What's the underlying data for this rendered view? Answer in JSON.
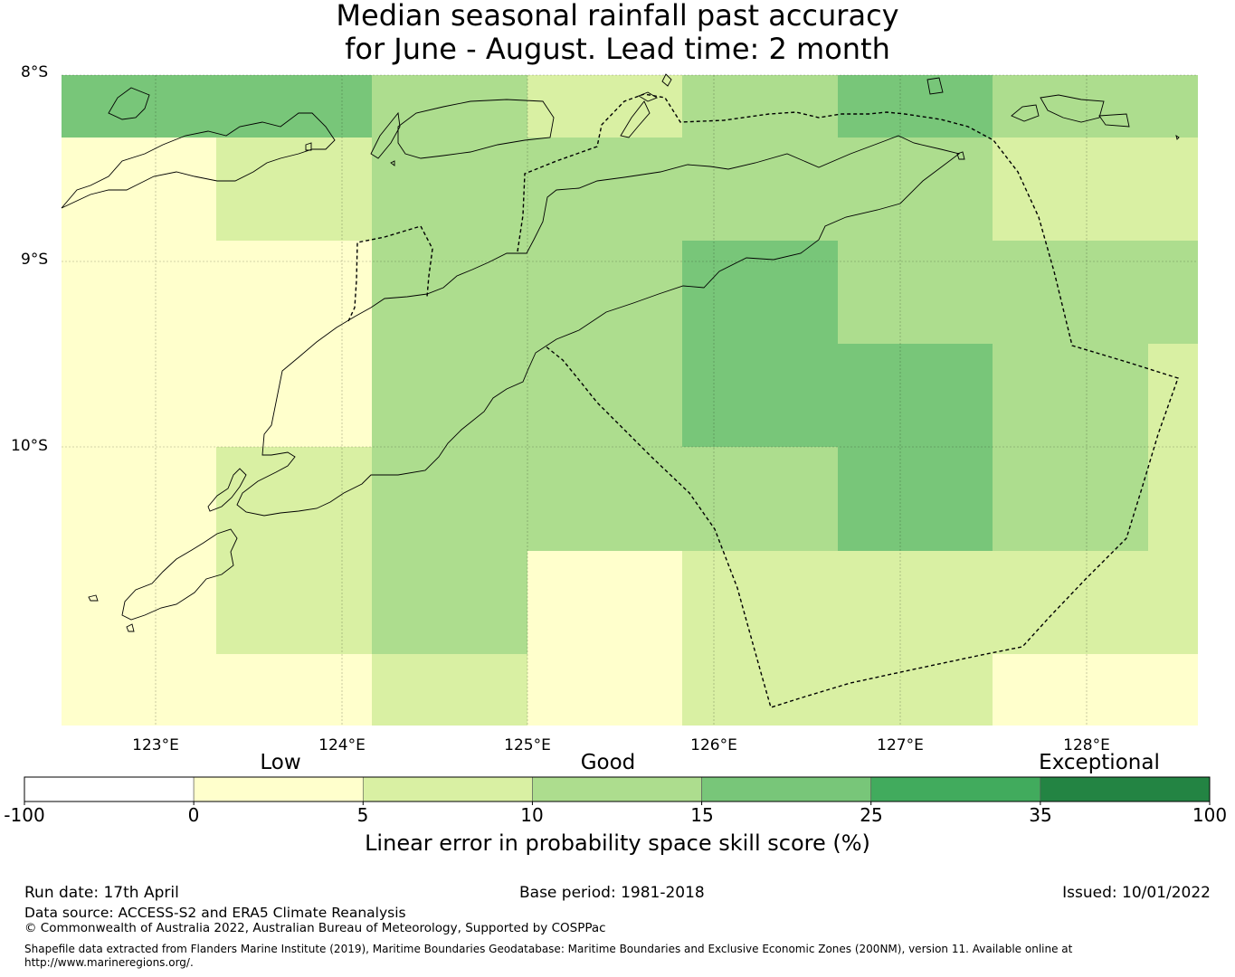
{
  "title_line1": "Median seasonal rainfall past accuracy",
  "title_line2": "for June - August. Lead time: 2 month",
  "map": {
    "lat_labels": [
      "8°S",
      "9°S",
      "10°S"
    ],
    "lon_labels": [
      "123°E",
      "124°E",
      "125°E",
      "126°E",
      "127°E",
      "128°E"
    ],
    "lon_range": [
      122.5,
      128.65
    ],
    "lat_range": [
      -11.5,
      -8.0
    ],
    "colors": {
      "c0": "#ffffcc",
      "c1": "#d9f0a3",
      "c2": "#addd8e",
      "c3": "#78c679"
    },
    "grid_rows": [
      [
        "c3",
        "c3",
        "c2",
        "c1",
        "c2",
        "c3",
        "c2",
        "c2"
      ],
      [
        "c0",
        "c1",
        "c2",
        "c2",
        "c2",
        "c2",
        "c1",
        "c1"
      ],
      [
        "c0",
        "c0",
        "c2",
        "c2",
        "c3",
        "c2",
        "c2",
        "c2"
      ],
      [
        "c0",
        "c0",
        "c2",
        "c2",
        "c3",
        "c3",
        "c2",
        "c1"
      ],
      [
        "c0",
        "c1",
        "c2",
        "c2",
        "c2",
        "c3",
        "c2",
        "c1"
      ],
      [
        "c0",
        "c1",
        "c2",
        "c0",
        "c1",
        "c1",
        "c1",
        "c1"
      ],
      [
        "c0",
        "c0",
        "c1",
        "c0",
        "c1",
        "c1",
        "c0",
        "c0"
      ]
    ]
  },
  "colorbar": {
    "category_labels": [
      "Low",
      "Good",
      "Exceptional"
    ],
    "ticks": [
      "-100",
      "0",
      "5",
      "10",
      "15",
      "25",
      "35",
      "100"
    ],
    "colors": [
      "#ffffff",
      "#ffffcc",
      "#d9f0a3",
      "#addd8e",
      "#78c679",
      "#41ab5d",
      "#238443"
    ],
    "title": "Linear error in probability space skill score (%)"
  },
  "footer": {
    "run_date": "Run date: 17th April",
    "base_period": "Base period: 1981-2018",
    "issued": "Issued: 10/01/2022",
    "data_source": "Data source: ACCESS-S2 and ERA5 Climate Reanalysis",
    "copyright": "© Commonwealth of Australia 2022, Australian Bureau of Meteorology, Supported by COSPPac",
    "shapefile_line1": "Shapefile data extracted from Flanders Marine Institute (2019), Maritime Boundaries Geodatabase: Maritime Boundaries and Exclusive Economic Zones (200NM), version 11. Available online at",
    "shapefile_line2": "http://www.marineregions.org/."
  }
}
